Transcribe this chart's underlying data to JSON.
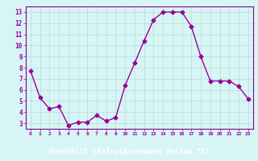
{
  "x": [
    0,
    1,
    2,
    3,
    4,
    5,
    6,
    7,
    8,
    9,
    10,
    11,
    12,
    13,
    14,
    15,
    16,
    17,
    18,
    19,
    20,
    21,
    22,
    23
  ],
  "y": [
    7.7,
    5.3,
    4.3,
    4.5,
    2.8,
    3.1,
    3.1,
    3.7,
    3.2,
    3.5,
    6.4,
    8.4,
    10.4,
    12.3,
    13.0,
    13.0,
    13.0,
    11.7,
    9.0,
    6.8,
    6.8,
    6.8,
    6.3,
    5.2
  ],
  "line_color": "#990099",
  "marker": "D",
  "marker_size": 2.5,
  "bg_color": "#d8f5f5",
  "grid_color": "#b8dada",
  "xlabel": "Windchill (Refroidissement éolien,°C)",
  "xlabel_color": "#ffffff",
  "xlabel_bg": "#880088",
  "ylabel_ticks": [
    3,
    4,
    5,
    6,
    7,
    8,
    9,
    10,
    11,
    12,
    13
  ],
  "xtick_labels": [
    "0",
    "1",
    "2",
    "3",
    "4",
    "5",
    "6",
    "7",
    "8",
    "9",
    "10",
    "11",
    "12",
    "13",
    "14",
    "15",
    "16",
    "17",
    "18",
    "19",
    "20",
    "21",
    "22",
    "23"
  ],
  "xlim": [
    -0.5,
    23.5
  ],
  "ylim": [
    2.5,
    13.5
  ],
  "tick_color": "#990099",
  "axis_color": "#990099",
  "spine_color": "#880088"
}
